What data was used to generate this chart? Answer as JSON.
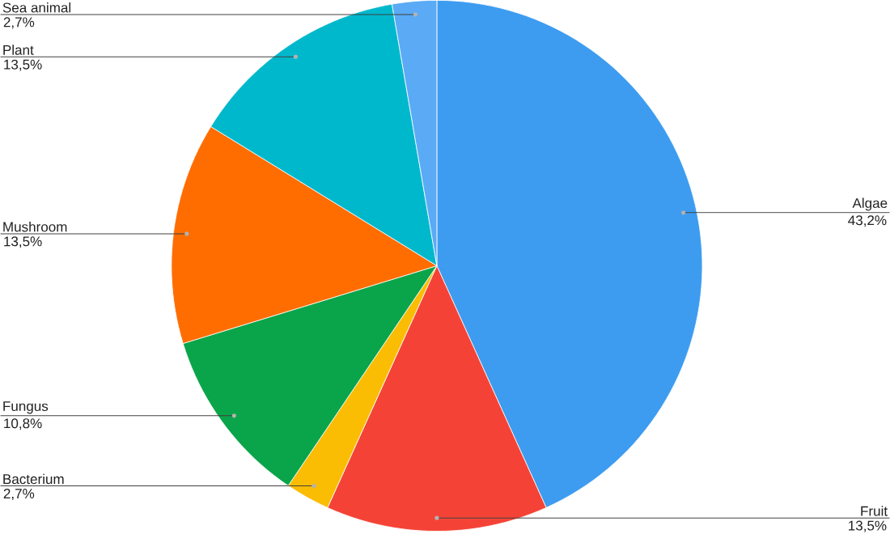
{
  "chart_data": {
    "type": "pie",
    "categories": [
      "Algae",
      "Fruit",
      "Bacterium",
      "Fungus",
      "Mushroom",
      "Plant",
      "Sea animal"
    ],
    "values": [
      43.2,
      13.5,
      2.7,
      10.8,
      13.5,
      13.5,
      2.7
    ],
    "value_labels": [
      "43,2%",
      "13,5%",
      "2,7%",
      "10,8%",
      "13,5%",
      "13,5%",
      "2,7%"
    ],
    "colors": [
      "#3d9cf0",
      "#f44336",
      "#fbbc04",
      "#0aa54a",
      "#ff6d01",
      "#00b8cc",
      "#5aaaf5"
    ]
  }
}
